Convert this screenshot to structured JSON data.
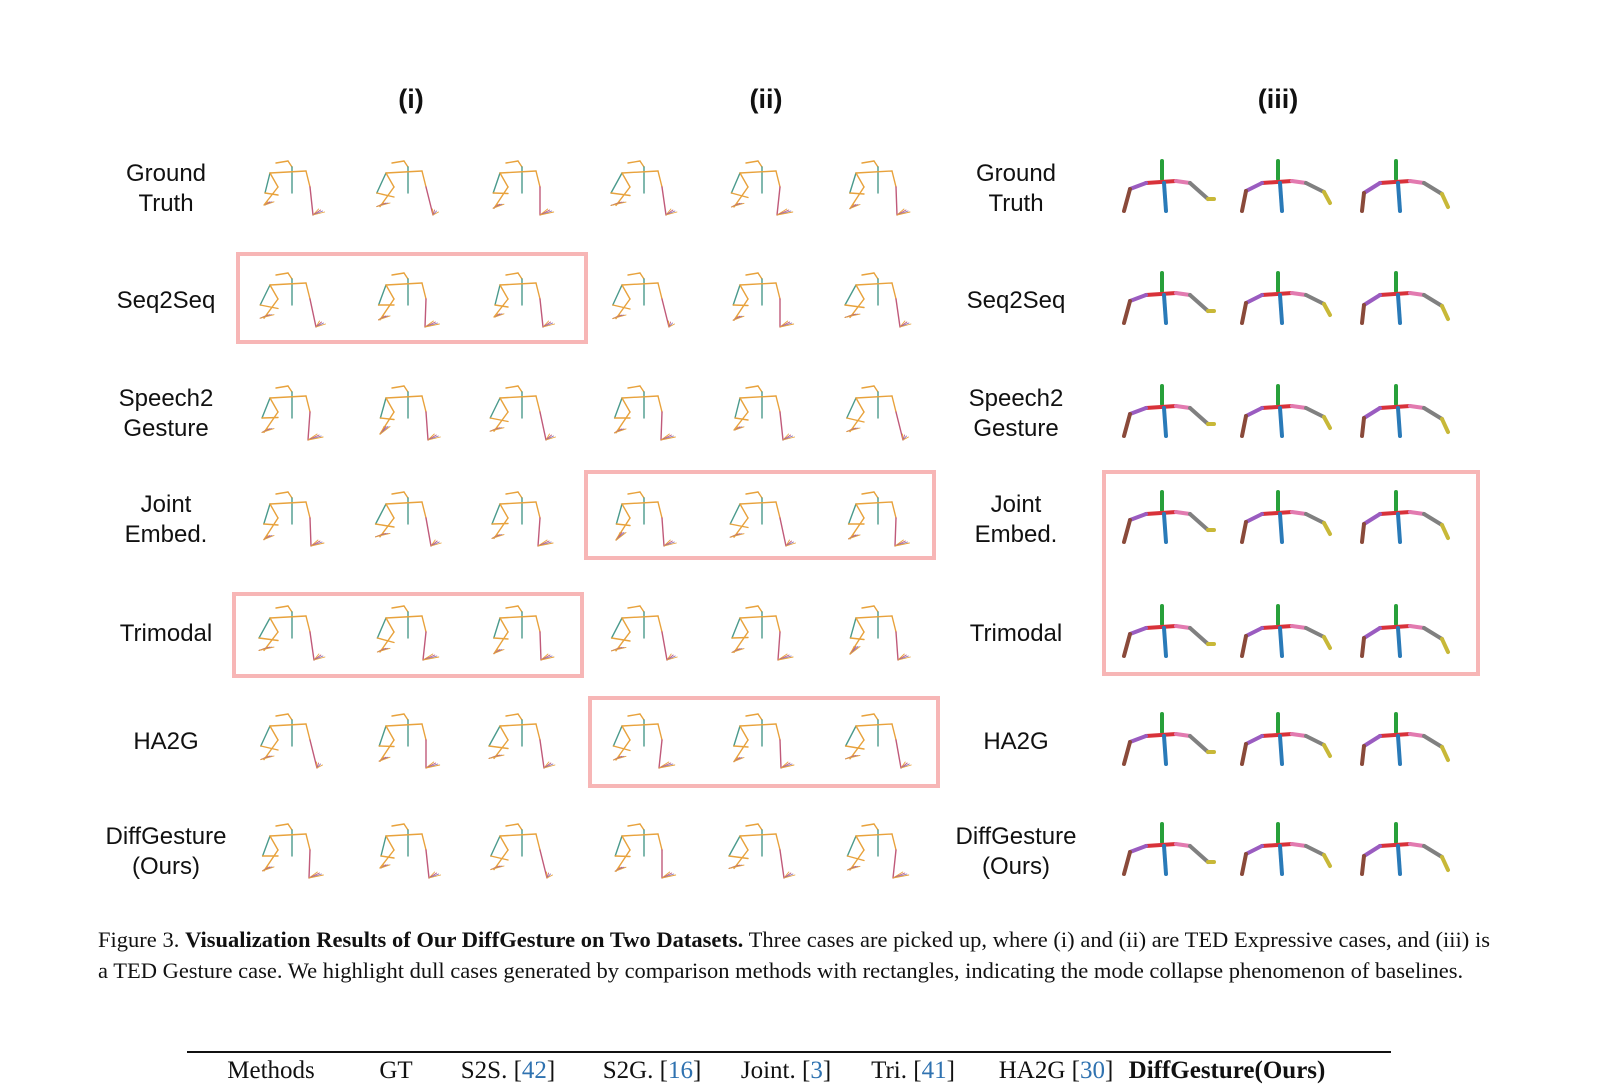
{
  "figure": {
    "column_headers": [
      "(i)",
      "(ii)",
      "(iii)"
    ],
    "row_labels": [
      "Ground\nTruth",
      "Seq2Seq",
      "Speech2\nGesture",
      "Joint\nEmbed.",
      "Trimodal",
      "HA2G",
      "DiffGesture\n(Ours)"
    ],
    "highlighted_cases": [
      {
        "row": "Seq2Seq",
        "case": "(i)"
      },
      {
        "row": "Joint Embed.",
        "case": "(ii)"
      },
      {
        "row": "Joint Embed.",
        "case": "(iii)"
      },
      {
        "row": "Trimodal",
        "case": "(i)"
      },
      {
        "row": "Trimodal",
        "case": "(iii)"
      },
      {
        "row": "HA2G",
        "case": "(ii)"
      }
    ],
    "colors": {
      "highlight_box": "#f7b6b6",
      "ted_expressive_skeleton": [
        "#4a9a8c",
        "#e8a23c",
        "#c05a7a",
        "#8a6fb8"
      ],
      "ted_gesture_skeleton": [
        "#27a03a",
        "#d8323a",
        "#2a7ab8",
        "#9a5cc0",
        "#8a4a3a",
        "#e27ab0",
        "#808080",
        "#c8b838"
      ]
    }
  },
  "caption": {
    "prefix": "Figure 3. ",
    "title": "Visualization Results of Our DiffGesture on Two Datasets.",
    "body": " Three cases are picked up, where (i) and (ii) are TED Expressive cases, and (iii) is a TED Gesture case.  We highlight dull cases generated by comparison methods with rectangles, indicating the mode collapse phenomenon of baselines."
  },
  "table_header": [
    {
      "text": "Methods"
    },
    {
      "text": "GT"
    },
    {
      "text": "S2S. [",
      "ref": "42",
      "suffix": "]"
    },
    {
      "text": "S2G. [",
      "ref": "16",
      "suffix": "]"
    },
    {
      "text": "Joint. [",
      "ref": "3",
      "suffix": "]"
    },
    {
      "text": "Tri. [",
      "ref": "41",
      "suffix": "]"
    },
    {
      "text": "HA2G [",
      "ref": "30",
      "suffix": "]"
    },
    {
      "text": "DiffGesture(Ours)",
      "bold": true
    }
  ]
}
